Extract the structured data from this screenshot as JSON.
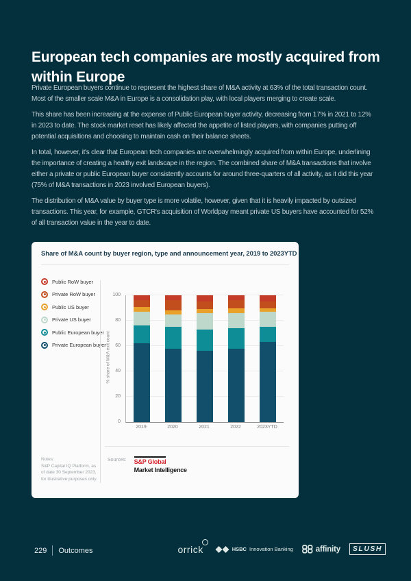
{
  "page": {
    "background": "#04303d"
  },
  "header": {
    "title": "European tech companies are mostly acquired from within Europe"
  },
  "paragraphs": [
    "Private European buyers continue to represent the highest share of M&A activity at 63% of the total transaction count. Most of the smaller scale M&A in Europe is a consolidation play, with local players merging to create scale.",
    "This share has been increasing at the expense of Public European buyer activity, decreasing from 17% in 2021 to 12% in 2023 to date. The stock market reset has likely affected the appetite of listed players, with companies putting off potential acquisitions and choosing to maintain cash on their balance sheets.",
    "In total, however, it's clear that European tech companies are overwhelmingly acquired from within Europe, underlining the importance of creating a healthy exit landscape in the region. The combined share of M&A transactions that involve either a private or public European buyer consistently accounts for around three-quarters of all activity, as it did this year (75% of M&A transactions in 2023 involved European buyers).",
    "The distribution of M&A value by buyer type is more volatile, however, given that it is heavily impacted by outsized transactions. This year, for example, GTCR's acquisition of Worldpay meant private US buyers have accounted for 52% of all transaction value in the year to date."
  ],
  "card": {
    "title": "Share of M&A count by buyer region, type and announcement year, 2019 to 2023YTD",
    "notes": {
      "label": "Notes:",
      "text": "S&P Capital IQ Platform, as of date 30 September 2023, for illustrative purposes only."
    },
    "sources": {
      "label": "Sources:",
      "brand_top": "S&P Global",
      "brand_bottom": "Market Intelligence",
      "brand_color": "#d6232b"
    }
  },
  "chart_data": {
    "type": "bar",
    "stacked": true,
    "title": "Share of M&A count by buyer region, type and announcement year, 2019 to 2023YTD",
    "categories": [
      "2019",
      "2020",
      "2021",
      "2022",
      "2023YTD"
    ],
    "series": [
      {
        "name": "Public RoW buyer",
        "color": "#c43b28",
        "values": [
          4,
          4,
          5,
          4,
          5
        ]
      },
      {
        "name": "Private RoW buyer",
        "color": "#c24e1d",
        "values": [
          5,
          8,
          6,
          6,
          5
        ]
      },
      {
        "name": "Public US buyer",
        "color": "#e8a22b",
        "values": [
          4,
          3,
          3,
          4,
          3
        ]
      },
      {
        "name": "Private US buyer",
        "color": "#bed9cc",
        "values": [
          11,
          10,
          13,
          12,
          12
        ]
      },
      {
        "name": "Public European buyer",
        "color": "#0e8d96",
        "values": [
          14,
          17,
          17,
          16,
          12
        ]
      },
      {
        "name": "Private European buyer",
        "color": "#114f6a",
        "values": [
          62,
          58,
          56,
          58,
          63
        ]
      }
    ],
    "series_note": "series listed top-of-stack first; last series sits at the bottom of each bar",
    "xlabel": "",
    "ylabel": "% share of M&A exit count",
    "ylim": [
      0,
      100
    ],
    "yticks": [
      0,
      20,
      40,
      60,
      80,
      100
    ],
    "grid": true,
    "legend_position": "left"
  },
  "footer": {
    "page_number": "229",
    "section": "Outcomes",
    "logos": {
      "orrick": "orrick",
      "hsbc_name": "HSBC",
      "hsbc_suffix": "Innovation Banking",
      "affinity": "affinity",
      "slush": "SLUSH"
    }
  }
}
